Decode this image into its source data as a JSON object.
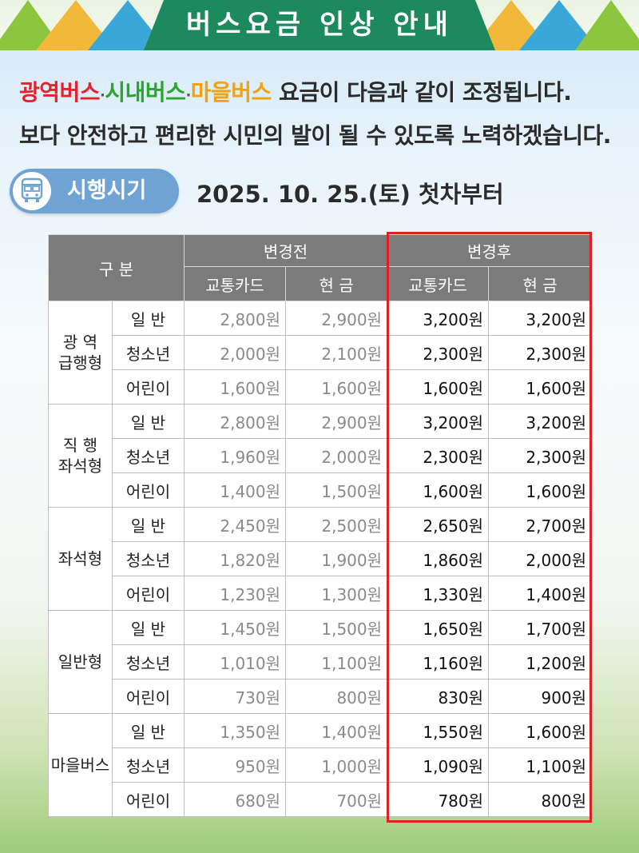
{
  "banner": {
    "title": "버스요금 인상 안내",
    "color": "#1c8a5c"
  },
  "notice": {
    "line1": {
      "part1": "광역버스",
      "sep1": "·",
      "part2": "시내버스",
      "sep2": "·",
      "part3": "마을버스",
      "rest": " 요금이 다음과 같이 조정됩니다."
    },
    "line2": "보다 안전하고 편리한 시민의 발이 될 수 있도록 노력하겠습니다."
  },
  "effective": {
    "label": "시행시기",
    "icon": "bus-icon",
    "date": "2025. 10. 25.(토) 첫차부터"
  },
  "table": {
    "header": {
      "category": "구 분",
      "before": "변경전",
      "after": "변경후",
      "card": "교통카드",
      "cash": "현 금"
    },
    "groups": [
      {
        "name_lines": [
          "광 역",
          "급행형"
        ],
        "rows": [
          {
            "type": "일 반",
            "before_card": "2,800원",
            "before_cash": "2,900원",
            "after_card": "3,200원",
            "after_cash": "3,200원"
          },
          {
            "type": "청소년",
            "before_card": "2,000원",
            "before_cash": "2,100원",
            "after_card": "2,300원",
            "after_cash": "2,300원"
          },
          {
            "type": "어린이",
            "before_card": "1,600원",
            "before_cash": "1,600원",
            "after_card": "1,600원",
            "after_cash": "1,600원"
          }
        ]
      },
      {
        "name_lines": [
          "직 행",
          "좌석형"
        ],
        "rows": [
          {
            "type": "일 반",
            "before_card": "2,800원",
            "before_cash": "2,900원",
            "after_card": "3,200원",
            "after_cash": "3,200원"
          },
          {
            "type": "청소년",
            "before_card": "1,960원",
            "before_cash": "2,000원",
            "after_card": "2,300원",
            "after_cash": "2,300원"
          },
          {
            "type": "어린이",
            "before_card": "1,400원",
            "before_cash": "1,500원",
            "after_card": "1,600원",
            "after_cash": "1,600원"
          }
        ]
      },
      {
        "name_lines": [
          "좌석형"
        ],
        "rows": [
          {
            "type": "일 반",
            "before_card": "2,450원",
            "before_cash": "2,500원",
            "after_card": "2,650원",
            "after_cash": "2,700원"
          },
          {
            "type": "청소년",
            "before_card": "1,820원",
            "before_cash": "1,900원",
            "after_card": "1,860원",
            "after_cash": "2,000원"
          },
          {
            "type": "어린이",
            "before_card": "1,230원",
            "before_cash": "1,300원",
            "after_card": "1,330원",
            "after_cash": "1,400원"
          }
        ]
      },
      {
        "name_lines": [
          "일반형"
        ],
        "rows": [
          {
            "type": "일 반",
            "before_card": "1,450원",
            "before_cash": "1,500원",
            "after_card": "1,650원",
            "after_cash": "1,700원"
          },
          {
            "type": "청소년",
            "before_card": "1,010원",
            "before_cash": "1,100원",
            "after_card": "1,160원",
            "after_cash": "1,200원"
          },
          {
            "type": "어린이",
            "before_card": "730원",
            "before_cash": "800원",
            "after_card": "830원",
            "after_cash": "900원"
          }
        ]
      },
      {
        "name_lines": [
          "마을버스"
        ],
        "rows": [
          {
            "type": "일 반",
            "before_card": "1,350원",
            "before_cash": "1,400원",
            "after_card": "1,550원",
            "after_cash": "1,600원"
          },
          {
            "type": "청소년",
            "before_card": "950원",
            "before_cash": "1,000원",
            "after_card": "1,090원",
            "after_cash": "1,100원"
          },
          {
            "type": "어린이",
            "before_card": "680원",
            "before_cash": "700원",
            "after_card": "780원",
            "after_cash": "800원"
          }
        ]
      }
    ]
  }
}
